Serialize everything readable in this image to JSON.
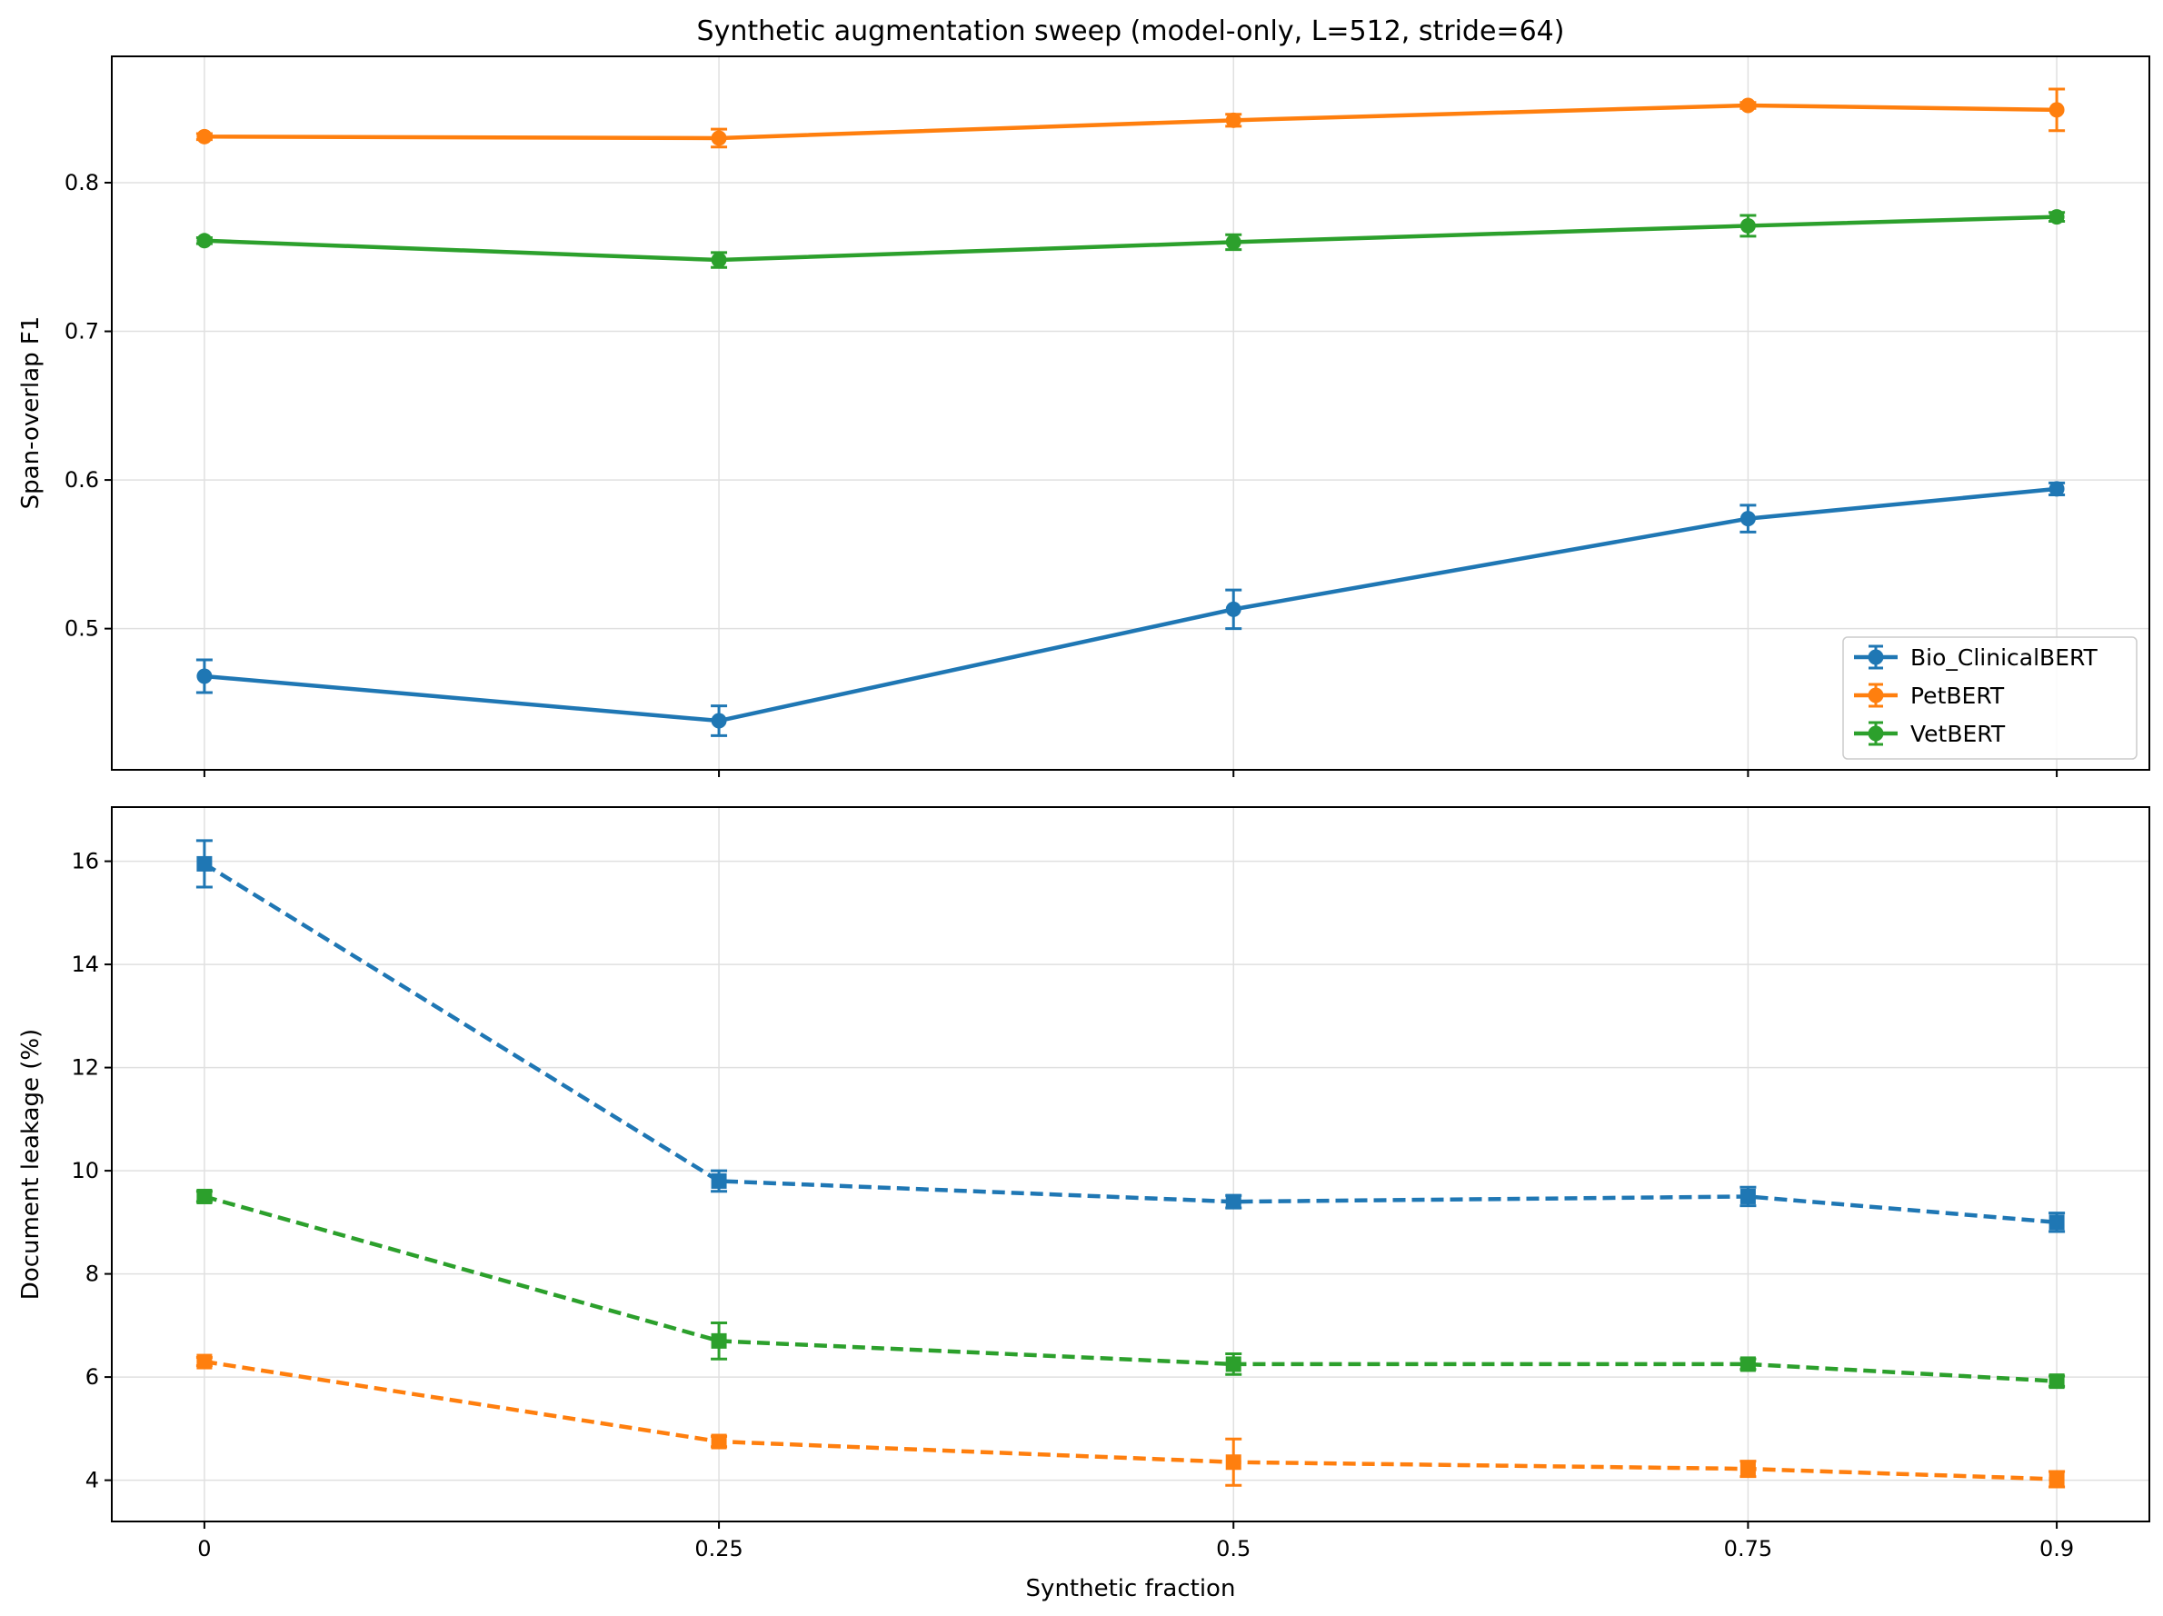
{
  "chart_data": [
    {
      "type": "line",
      "title": "Synthetic augmentation sweep (model-only, L=512, stride=64)",
      "xlabel": "",
      "ylabel": "Span-overlap F1",
      "x": [
        0,
        0.25,
        0.5,
        0.75,
        0.9
      ],
      "x_tick_labels": [
        "0",
        "0.25",
        "0.5",
        "0.75",
        "0.9"
      ],
      "y_ticks": [
        0.5,
        0.6,
        0.7,
        0.8
      ],
      "y_tick_labels": [
        "0.5",
        "0.6",
        "0.7",
        "0.8"
      ],
      "ylim": [
        0.405,
        0.885
      ],
      "xlim": [
        -0.045,
        0.945
      ],
      "grid": true,
      "legend_position": "lower-right",
      "series": [
        {
          "name": "Bio_ClinicalBERT",
          "color": "#1f77b4",
          "marker": "circle",
          "linestyle": "solid",
          "values": [
            0.468,
            0.438,
            0.513,
            0.574,
            0.594
          ],
          "errors": [
            0.011,
            0.01,
            0.013,
            0.009,
            0.004
          ]
        },
        {
          "name": "PetBERT",
          "color": "#ff7f0e",
          "marker": "circle",
          "linestyle": "solid",
          "values": [
            0.831,
            0.83,
            0.842,
            0.852,
            0.849
          ],
          "errors": [
            0.002,
            0.006,
            0.004,
            0.002,
            0.014
          ]
        },
        {
          "name": "VetBERT",
          "color": "#2ca02c",
          "marker": "circle",
          "linestyle": "solid",
          "values": [
            0.761,
            0.748,
            0.76,
            0.771,
            0.777
          ],
          "errors": [
            0.002,
            0.005,
            0.005,
            0.007,
            0.003
          ]
        }
      ]
    },
    {
      "type": "line",
      "title": "",
      "xlabel": "Synthetic fraction",
      "ylabel": "Document leakage (%)",
      "x": [
        0,
        0.25,
        0.5,
        0.75,
        0.9
      ],
      "x_tick_labels": [
        "0",
        "0.25",
        "0.5",
        "0.75",
        "0.9"
      ],
      "y_ticks": [
        4,
        6,
        8,
        10,
        12,
        14,
        16
      ],
      "y_tick_labels": [
        "4",
        "6",
        "8",
        "10",
        "12",
        "14",
        "16"
      ],
      "ylim": [
        3.2,
        17.05
      ],
      "xlim": [
        -0.045,
        0.945
      ],
      "grid": true,
      "series": [
        {
          "name": "Bio_ClinicalBERT",
          "color": "#1f77b4",
          "marker": "square",
          "linestyle": "dashed",
          "values": [
            15.95,
            9.8,
            9.4,
            9.5,
            9.0
          ],
          "errors": [
            0.45,
            0.2,
            0.12,
            0.18,
            0.18
          ]
        },
        {
          "name": "PetBERT",
          "color": "#ff7f0e",
          "marker": "square",
          "linestyle": "dashed",
          "values": [
            6.3,
            4.75,
            4.35,
            4.22,
            4.02
          ],
          "errors": [
            0.08,
            0.1,
            0.45,
            0.15,
            0.15
          ]
        },
        {
          "name": "VetBERT",
          "color": "#2ca02c",
          "marker": "square",
          "linestyle": "dashed",
          "values": [
            9.5,
            6.7,
            6.25,
            6.25,
            5.92
          ],
          "errors": [
            0.1,
            0.35,
            0.2,
            0.1,
            0.1
          ]
        }
      ]
    }
  ]
}
